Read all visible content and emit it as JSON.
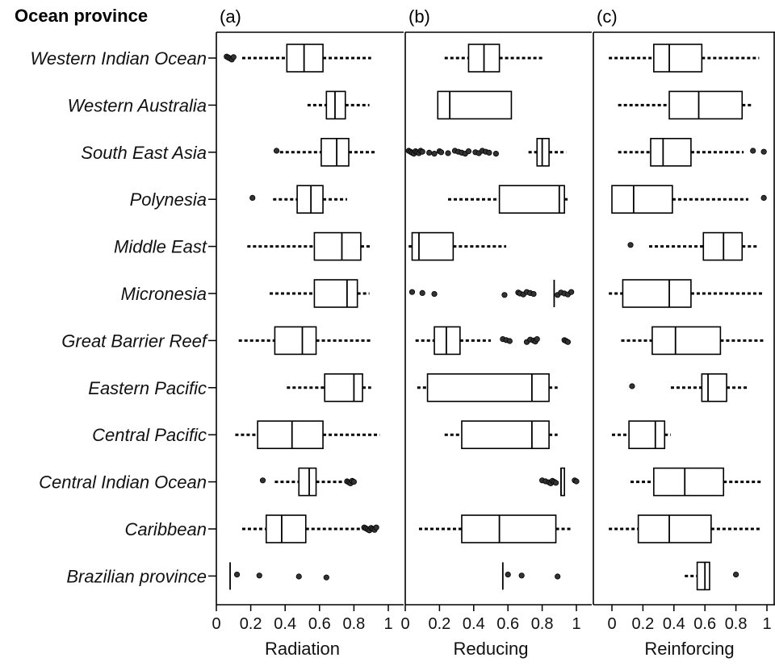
{
  "chart_data": {
    "type": "boxplot",
    "y_title": "Ocean province",
    "categories": [
      "Western Indian Ocean",
      "Western Australia",
      "South East Asia",
      "Polynesia",
      "Middle East",
      "Micronesia",
      "Great Barrier Reef",
      "Eastern Pacific",
      "Central Pacific",
      "Central Indian Ocean",
      "Caribbean",
      "Brazilian province"
    ],
    "x_ticks": [
      "0",
      "0.2",
      "0.4",
      "0.6",
      "0.8",
      "1"
    ],
    "tick_values": [
      0,
      0.2,
      0.4,
      0.6,
      0.8,
      1
    ],
    "xlim": [
      0,
      1
    ],
    "panels": [
      {
        "letter": "(a)",
        "xlabel": "Radiation",
        "boxes": [
          {
            "wlo": 0.15,
            "q1": 0.41,
            "med": 0.51,
            "q3": 0.62,
            "whi": 0.9,
            "outliers": [
              0.06,
              0.07,
              0.08,
              0.09,
              0.1
            ]
          },
          {
            "wlo": 0.53,
            "q1": 0.64,
            "med": 0.69,
            "q3": 0.75,
            "whi": 0.89,
            "outliers": []
          },
          {
            "wlo": 0.37,
            "q1": 0.61,
            "med": 0.7,
            "q3": 0.77,
            "whi": 0.93,
            "outliers": [
              0.35
            ]
          },
          {
            "wlo": 0.33,
            "q1": 0.47,
            "med": 0.55,
            "q3": 0.62,
            "whi": 0.76,
            "outliers": [
              0.21
            ]
          },
          {
            "wlo": 0.18,
            "q1": 0.57,
            "med": 0.73,
            "q3": 0.84,
            "whi": 0.9,
            "outliers": []
          },
          {
            "wlo": 0.31,
            "q1": 0.57,
            "med": 0.76,
            "q3": 0.82,
            "whi": 0.89,
            "outliers": []
          },
          {
            "wlo": 0.13,
            "q1": 0.34,
            "med": 0.5,
            "q3": 0.58,
            "whi": 0.9,
            "outliers": []
          },
          {
            "wlo": 0.41,
            "q1": 0.63,
            "med": 0.8,
            "q3": 0.85,
            "whi": 0.9,
            "outliers": []
          },
          {
            "wlo": 0.11,
            "q1": 0.24,
            "med": 0.44,
            "q3": 0.62,
            "whi": 0.95,
            "outliers": []
          },
          {
            "wlo": 0.34,
            "q1": 0.48,
            "med": 0.54,
            "q3": 0.58,
            "whi": 0.75,
            "outliers": [
              0.27,
              0.76,
              0.77,
              0.78,
              0.79,
              0.8
            ]
          },
          {
            "wlo": 0.15,
            "q1": 0.29,
            "med": 0.38,
            "q3": 0.52,
            "whi": 0.86,
            "outliers": [
              0.86,
              0.87,
              0.88,
              0.89,
              0.9,
              0.91,
              0.92,
              0.93
            ]
          },
          {
            "wlo": 0.08,
            "q1": 0.08,
            "med": 0.08,
            "q3": 0.08,
            "whi": 0.08,
            "outliers": [
              0.12,
              0.25,
              0.48,
              0.64
            ]
          }
        ]
      },
      {
        "letter": "(b)",
        "xlabel": "Reducing",
        "boxes": [
          {
            "wlo": 0.23,
            "q1": 0.37,
            "med": 0.46,
            "q3": 0.55,
            "whi": 0.8,
            "outliers": []
          },
          {
            "wlo": 0.19,
            "q1": 0.19,
            "med": 0.26,
            "q3": 0.62,
            "whi": 0.62,
            "outliers": []
          },
          {
            "wlo": 0.72,
            "q1": 0.77,
            "med": 0.8,
            "q3": 0.84,
            "whi": 0.94,
            "outliers": [
              0.02,
              0.03,
              0.04,
              0.05,
              0.06,
              0.07,
              0.08,
              0.09,
              0.1,
              0.14,
              0.17,
              0.2,
              0.21,
              0.25,
              0.29,
              0.31,
              0.33,
              0.35,
              0.37,
              0.41,
              0.43,
              0.45,
              0.47,
              0.49,
              0.53
            ]
          },
          {
            "wlo": 0.25,
            "q1": 0.55,
            "med": 0.9,
            "q3": 0.93,
            "whi": 0.95,
            "outliers": []
          },
          {
            "wlo": 0.02,
            "q1": 0.04,
            "med": 0.08,
            "q3": 0.28,
            "whi": 0.59,
            "outliers": []
          },
          {
            "wlo": 0.87,
            "q1": 0.87,
            "med": 0.87,
            "q3": 0.87,
            "whi": 0.87,
            "outliers": [
              0.04,
              0.1,
              0.17,
              0.58,
              0.66,
              0.67,
              0.69,
              0.71,
              0.73,
              0.75,
              0.89,
              0.91,
              0.93,
              0.95,
              0.97
            ]
          },
          {
            "wlo": 0.06,
            "q1": 0.17,
            "med": 0.24,
            "q3": 0.32,
            "whi": 0.5,
            "outliers": [
              0.57,
              0.59,
              0.61,
              0.71,
              0.73,
              0.75,
              0.76,
              0.77,
              0.93,
              0.94,
              0.95
            ]
          },
          {
            "wlo": 0.07,
            "q1": 0.13,
            "med": 0.74,
            "q3": 0.84,
            "whi": 0.89,
            "outliers": []
          },
          {
            "wlo": 0.23,
            "q1": 0.33,
            "med": 0.74,
            "q3": 0.84,
            "whi": 0.89,
            "outliers": []
          },
          {
            "wlo": 0.91,
            "q1": 0.91,
            "med": 0.91,
            "q3": 0.93,
            "whi": 0.93,
            "outliers": [
              0.8,
              0.82,
              0.84,
              0.85,
              0.86,
              0.87,
              0.88,
              0.99,
              1.0
            ]
          },
          {
            "wlo": 0.08,
            "q1": 0.33,
            "med": 0.55,
            "q3": 0.88,
            "whi": 0.97,
            "outliers": []
          },
          {
            "wlo": 0.57,
            "q1": 0.57,
            "med": 0.57,
            "q3": 0.57,
            "whi": 0.57,
            "outliers": [
              0.6,
              0.68,
              0.89
            ]
          }
        ]
      },
      {
        "letter": "(c)",
        "xlabel": "Reinforcing",
        "boxes": [
          {
            "wlo": -0.02,
            "q1": 0.27,
            "med": 0.37,
            "q3": 0.58,
            "whi": 0.95,
            "outliers": []
          },
          {
            "wlo": 0.04,
            "q1": 0.37,
            "med": 0.56,
            "q3": 0.84,
            "whi": 0.9,
            "outliers": []
          },
          {
            "wlo": 0.04,
            "q1": 0.25,
            "med": 0.33,
            "q3": 0.51,
            "whi": 0.85,
            "outliers": [
              0.91,
              0.98
            ]
          },
          {
            "wlo": 0.0,
            "q1": 0.0,
            "med": 0.14,
            "q3": 0.39,
            "whi": 0.88,
            "outliers": [
              0.98
            ]
          },
          {
            "wlo": 0.24,
            "q1": 0.59,
            "med": 0.72,
            "q3": 0.84,
            "whi": 0.94,
            "outliers": [
              0.12
            ]
          },
          {
            "wlo": -0.02,
            "q1": 0.07,
            "med": 0.37,
            "q3": 0.51,
            "whi": 0.98,
            "outliers": []
          },
          {
            "wlo": 0.06,
            "q1": 0.26,
            "med": 0.41,
            "q3": 0.7,
            "whi": 0.98,
            "outliers": []
          },
          {
            "wlo": 0.38,
            "q1": 0.58,
            "med": 0.62,
            "q3": 0.74,
            "whi": 0.88,
            "outliers": [
              0.13
            ]
          },
          {
            "wlo": 0.0,
            "q1": 0.11,
            "med": 0.28,
            "q3": 0.34,
            "whi": 0.38,
            "outliers": []
          },
          {
            "wlo": 0.12,
            "q1": 0.27,
            "med": 0.47,
            "q3": 0.72,
            "whi": 0.96,
            "outliers": []
          },
          {
            "wlo": -0.02,
            "q1": 0.17,
            "med": 0.37,
            "q3": 0.64,
            "whi": 0.96,
            "outliers": []
          },
          {
            "wlo": 0.47,
            "q1": 0.55,
            "med": 0.6,
            "q3": 0.63,
            "whi": 0.63,
            "outliers": [
              0.8
            ]
          }
        ]
      }
    ]
  }
}
